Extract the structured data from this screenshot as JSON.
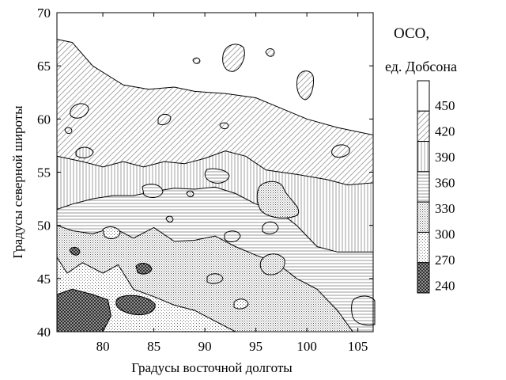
{
  "chart_data": {
    "type": "heatmap",
    "subtype": "filled-contour",
    "title": "",
    "xlabel": "Градусы восточной долготы",
    "ylabel": "Градусы северной широты",
    "xlim": [
      75.5,
      106.5
    ],
    "ylim": [
      40,
      70
    ],
    "xticks": [
      80,
      85,
      90,
      95,
      100,
      105
    ],
    "yticks": [
      40,
      45,
      50,
      55,
      60,
      65,
      70
    ],
    "grid": false,
    "legend": {
      "title_line1": "ОСО,",
      "title_line2": "ед. Добсона",
      "position": "right",
      "levels": [
        450,
        420,
        390,
        360,
        330,
        300,
        270,
        240
      ],
      "bands": [
        {
          "range": [
            420,
            450
          ],
          "pattern": "white"
        },
        {
          "range": [
            390,
            420
          ],
          "pattern": "diagonal"
        },
        {
          "range": [
            360,
            390
          ],
          "pattern": "vertical"
        },
        {
          "range": [
            330,
            360
          ],
          "pattern": "horizontal"
        },
        {
          "range": [
            300,
            330
          ],
          "pattern": "dots-dense"
        },
        {
          "range": [
            270,
            300
          ],
          "pattern": "dots-sparse"
        },
        {
          "range": [
            240,
            270
          ],
          "pattern": "crosshatch"
        }
      ]
    },
    "zones": [
      {
        "range": [
          390,
          420
        ],
        "pattern": "diagonal",
        "lower_boundary": [
          [
            75.5,
            67.5
          ],
          [
            77,
            67.2
          ],
          [
            79,
            65
          ],
          [
            82,
            63.2
          ],
          [
            84.5,
            62.8
          ],
          [
            87,
            63
          ],
          [
            89,
            62.6
          ],
          [
            92,
            62.4
          ],
          [
            95,
            62
          ],
          [
            97.5,
            61
          ],
          [
            100,
            60
          ],
          [
            103,
            59.2
          ],
          [
            106.5,
            58.5
          ]
        ]
      },
      {
        "range": [
          360,
          390
        ],
        "pattern": "vertical",
        "lower_boundary": [
          [
            75.5,
            56.5
          ],
          [
            78,
            56
          ],
          [
            80,
            55.5
          ],
          [
            82,
            56
          ],
          [
            84,
            55.5
          ],
          [
            86,
            56
          ],
          [
            88,
            55.8
          ],
          [
            90,
            56.3
          ],
          [
            92,
            57
          ],
          [
            94,
            56.5
          ],
          [
            96,
            55.2
          ],
          [
            99,
            54.8
          ],
          [
            102,
            54.3
          ],
          [
            104,
            53.8
          ],
          [
            106.5,
            54
          ]
        ]
      },
      {
        "range": [
          330,
          360
        ],
        "pattern": "horizontal",
        "lower_boundary": [
          [
            75.5,
            51.5
          ],
          [
            77,
            52
          ],
          [
            79,
            52.5
          ],
          [
            81,
            52.8
          ],
          [
            83,
            52.8
          ],
          [
            85,
            53.2
          ],
          [
            87,
            53.5
          ],
          [
            89,
            53.4
          ],
          [
            91,
            53.6
          ],
          [
            93,
            53
          ],
          [
            95,
            52
          ],
          [
            97,
            51.5
          ],
          [
            99,
            50
          ],
          [
            101,
            48
          ],
          [
            103,
            47.5
          ],
          [
            106.5,
            47.5
          ]
        ]
      },
      {
        "range": [
          300,
          330
        ],
        "pattern": "dots-dense",
        "lower_boundary": [
          [
            75.5,
            50
          ],
          [
            77,
            49.5
          ],
          [
            79,
            49.2
          ],
          [
            81,
            49.8
          ],
          [
            83,
            48.8
          ],
          [
            85,
            49.8
          ],
          [
            87,
            48.5
          ],
          [
            89,
            48.6
          ],
          [
            91,
            49
          ],
          [
            93,
            48
          ],
          [
            95,
            47.2
          ],
          [
            97,
            46.5
          ],
          [
            99,
            45
          ],
          [
            101,
            44
          ],
          [
            103,
            42
          ],
          [
            104.5,
            40
          ]
        ]
      },
      {
        "range": [
          270,
          300
        ],
        "pattern": "dots-sparse",
        "lower_boundary": [
          [
            75.5,
            47
          ],
          [
            76.5,
            45.5
          ],
          [
            78,
            46.5
          ],
          [
            80,
            45.5
          ],
          [
            81.5,
            46.3
          ],
          [
            83,
            44
          ],
          [
            85,
            43.3
          ],
          [
            87,
            42.5
          ],
          [
            89,
            42
          ],
          [
            91,
            41
          ],
          [
            93,
            40
          ]
        ]
      },
      {
        "range": [
          240,
          270
        ],
        "pattern": "crosshatch",
        "lower_boundary": [
          [
            75.5,
            43.5
          ],
          [
            77,
            44
          ],
          [
            79,
            43.5
          ],
          [
            80.5,
            43
          ],
          [
            80.8,
            41.5
          ],
          [
            80,
            40
          ]
        ]
      }
    ]
  }
}
